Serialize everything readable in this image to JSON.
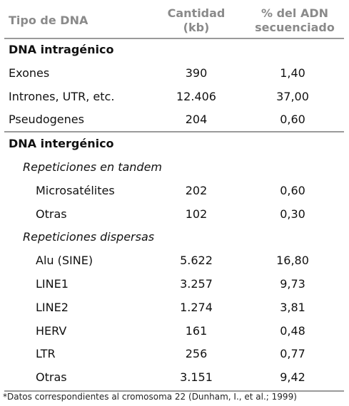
{
  "header": {
    "columns": [
      "Tipo de DNA",
      "Cantidad (kb)",
      "% del ADN secuenciado"
    ]
  },
  "sections": [
    {
      "title": "DNA intragénico",
      "rows": [
        {
          "label": "Exones",
          "cantidad": "390",
          "porcentaje": "1,40"
        },
        {
          "label": "Intrones, UTR, etc.",
          "cantidad": "12.406",
          "porcentaje": "37,00"
        },
        {
          "label": "Pseudogenes",
          "cantidad": "204",
          "porcentaje": "0,60"
        }
      ]
    },
    {
      "title": "DNA intergénico",
      "groups": [
        {
          "title": "Repeticiones en tandem",
          "rows": [
            {
              "label": "Microsatélites",
              "cantidad": "202",
              "porcentaje": "0,60"
            },
            {
              "label": "Otras",
              "cantidad": "102",
              "porcentaje": "0,30"
            }
          ]
        },
        {
          "title": "Repeticiones dispersas",
          "rows": [
            {
              "label": "Alu (SINE)",
              "cantidad": "5.622",
              "porcentaje": "16,80"
            },
            {
              "label": "LINE1",
              "cantidad": "3.257",
              "porcentaje": "9,73"
            },
            {
              "label": "LINE2",
              "cantidad": "1.274",
              "porcentaje": "3,81"
            },
            {
              "label": "HERV",
              "cantidad": "161",
              "porcentaje": "0,48"
            },
            {
              "label": "LTR",
              "cantidad": "256",
              "porcentaje": "0,77"
            },
            {
              "label": "Otras",
              "cantidad": "3.151",
              "porcentaje": "9,42"
            }
          ]
        }
      ]
    }
  ],
  "footnote": "*Datos correspondientes al cromosoma 22 (Dunham, I., et al.; 1999)"
}
